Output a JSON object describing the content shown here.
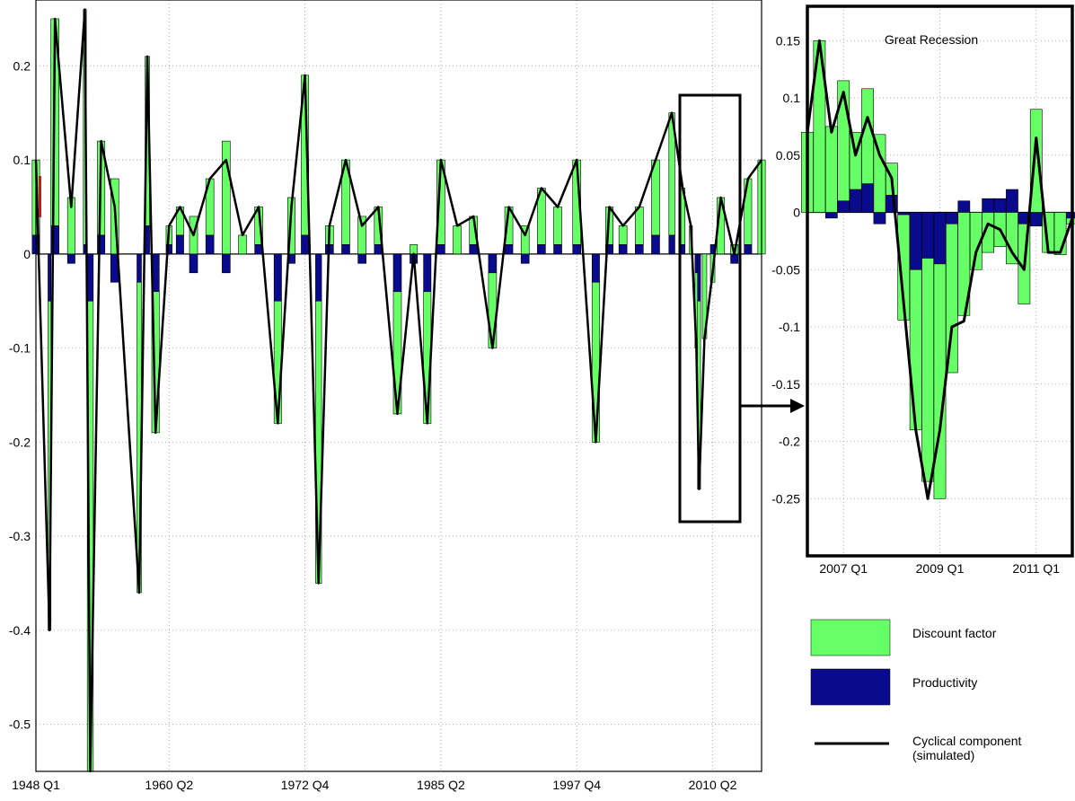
{
  "colors": {
    "discount_factor": "#66ff66",
    "productivity": "#0a0a8c",
    "cyclical": "#000000",
    "early_marker": "#b22222"
  },
  "chart_data": [
    {
      "id": "main",
      "type": "bar",
      "stacked": true,
      "x_tick_labels": [
        "1948 Q1",
        "1960 Q2",
        "1972 Q4",
        "1985 Q2",
        "1997 Q4",
        "2010 Q2"
      ],
      "y_tick_labels": [
        "-0.5",
        "-0.4",
        "-0.3",
        "-0.2",
        "-0.1",
        "0",
        "0.1",
        "0.2"
      ],
      "ylim": [
        -0.55,
        0.27
      ],
      "grid": true,
      "inset_box_label": "",
      "quarters": [
        "1948Q1",
        "1949Q2",
        "1949Q4",
        "1951Q2",
        "1952Q3",
        "1953Q1",
        "1954Q1",
        "1955Q2",
        "1957Q3",
        "1958Q2",
        "1959Q1",
        "1960Q2",
        "1961Q2",
        "1962Q3",
        "1964Q1",
        "1965Q3",
        "1967Q1",
        "1968Q3",
        "1970Q2",
        "1971Q3",
        "1972Q4",
        "1974Q1",
        "1975Q1",
        "1976Q3",
        "1978Q1",
        "1979Q3",
        "1981Q2",
        "1982Q4",
        "1984Q1",
        "1985Q2",
        "1986Q4",
        "1988Q2",
        "1990Q1",
        "1991Q3",
        "1993Q1",
        "1994Q3",
        "1996Q1",
        "1997Q4",
        "1999Q3",
        "2000Q4",
        "2002Q1",
        "2003Q3",
        "2005Q1",
        "2006Q3",
        "2007Q3",
        "2008Q2",
        "2008Q4",
        "2009Q1",
        "2009Q3",
        "2010Q2",
        "2011Q1",
        "2012Q2",
        "2013Q3",
        "2014Q4"
      ],
      "cyclical_component": [
        0.1,
        -0.4,
        0.25,
        0.05,
        0.26,
        -0.55,
        0.12,
        0.05,
        -0.36,
        0.21,
        -0.19,
        0.03,
        0.05,
        0.02,
        0.08,
        0.1,
        0.02,
        0.05,
        -0.18,
        0.05,
        0.19,
        -0.35,
        0.03,
        0.1,
        0.03,
        0.05,
        -0.17,
        0.0,
        -0.18,
        0.1,
        0.03,
        0.04,
        -0.1,
        0.05,
        0.02,
        0.07,
        0.05,
        0.1,
        -0.2,
        0.05,
        0.03,
        0.05,
        0.1,
        0.15,
        0.07,
        0.03,
        -0.1,
        -0.25,
        -0.09,
        -0.02,
        0.06,
        0.0,
        0.08,
        0.1
      ],
      "discount_factor": [
        0.08,
        -0.35,
        0.22,
        0.06,
        0.25,
        -0.5,
        0.1,
        0.08,
        -0.33,
        0.18,
        -0.15,
        0.02,
        0.03,
        0.04,
        0.06,
        0.12,
        0.02,
        0.04,
        -0.13,
        0.06,
        0.17,
        -0.3,
        0.02,
        0.09,
        0.04,
        0.04,
        -0.13,
        0.01,
        -0.14,
        0.09,
        0.03,
        0.03,
        -0.08,
        0.04,
        0.03,
        0.06,
        0.04,
        0.09,
        -0.17,
        0.04,
        0.02,
        0.04,
        0.08,
        0.13,
        0.06,
        0.03,
        -0.08,
        -0.2,
        -0.09,
        -0.03,
        0.06,
        0.01,
        0.07,
        0.1
      ],
      "productivity": [
        0.02,
        -0.05,
        0.03,
        -0.01,
        0.01,
        -0.05,
        0.02,
        -0.03,
        -0.03,
        0.03,
        -0.04,
        0.01,
        0.02,
        -0.02,
        0.02,
        -0.02,
        0.0,
        0.01,
        -0.05,
        -0.01,
        0.02,
        -0.05,
        0.01,
        0.01,
        -0.01,
        0.01,
        -0.04,
        -0.01,
        -0.04,
        0.01,
        0.0,
        0.01,
        -0.02,
        0.01,
        -0.01,
        0.01,
        0.01,
        0.01,
        -0.03,
        0.01,
        0.01,
        0.01,
        0.02,
        0.02,
        0.01,
        0.0,
        -0.02,
        -0.05,
        0.0,
        0.01,
        0.0,
        -0.01,
        0.01,
        0.0
      ]
    },
    {
      "id": "inset",
      "type": "bar",
      "stacked": true,
      "title": "Great Recession",
      "x_tick_labels": [
        "2007 Q1",
        "2009 Q1",
        "2011 Q1"
      ],
      "y_tick_labels": [
        "-0.25",
        "-0.2",
        "-0.15",
        "-0.1",
        "-0.05",
        "0",
        "0.05",
        "0.1",
        "0.15"
      ],
      "ylim": [
        -0.3,
        0.18
      ],
      "grid": true,
      "quarters": [
        "2006Q2",
        "2006Q3",
        "2006Q4",
        "2007Q1",
        "2007Q2",
        "2007Q3",
        "2007Q4",
        "2008Q1",
        "2008Q2",
        "2008Q3",
        "2008Q4",
        "2009Q1",
        "2009Q2",
        "2009Q3",
        "2009Q4",
        "2010Q1",
        "2010Q2",
        "2010Q3",
        "2010Q4",
        "2011Q1",
        "2011Q2",
        "2011Q3",
        "2011Q4"
      ],
      "discount_factor": [
        0.07,
        0.15,
        0.075,
        0.105,
        0.05,
        0.083,
        0.068,
        0.028,
        -0.092,
        -0.14,
        -0.195,
        -0.205,
        -0.13,
        -0.09,
        -0.05,
        -0.035,
        -0.03,
        -0.045,
        -0.07,
        0.09,
        -0.035,
        -0.037,
        -0.005
      ],
      "productivity": [
        0.0,
        0.0,
        -0.005,
        0.01,
        0.02,
        0.025,
        -0.01,
        0.015,
        -0.002,
        -0.05,
        -0.04,
        -0.045,
        -0.01,
        0.01,
        0.0,
        0.012,
        0.012,
        0.02,
        -0.01,
        -0.012,
        0.0,
        0.0,
        -0.005
      ],
      "cyclical_component": [
        0.07,
        0.15,
        0.07,
        0.105,
        0.05,
        0.083,
        0.05,
        0.03,
        -0.08,
        -0.19,
        -0.25,
        -0.19,
        -0.1,
        -0.095,
        -0.035,
        -0.01,
        -0.015,
        -0.035,
        -0.05,
        0.065,
        -0.035,
        -0.035,
        -0.005
      ]
    }
  ],
  "legend": [
    {
      "label": "Discount factor",
      "swatch": "discount_factor",
      "kind": "patch"
    },
    {
      "label": "Productivity",
      "swatch": "productivity",
      "kind": "patch"
    },
    {
      "label": "Cyclical component\n(simulated)",
      "swatch": "cyclical",
      "kind": "line"
    }
  ]
}
